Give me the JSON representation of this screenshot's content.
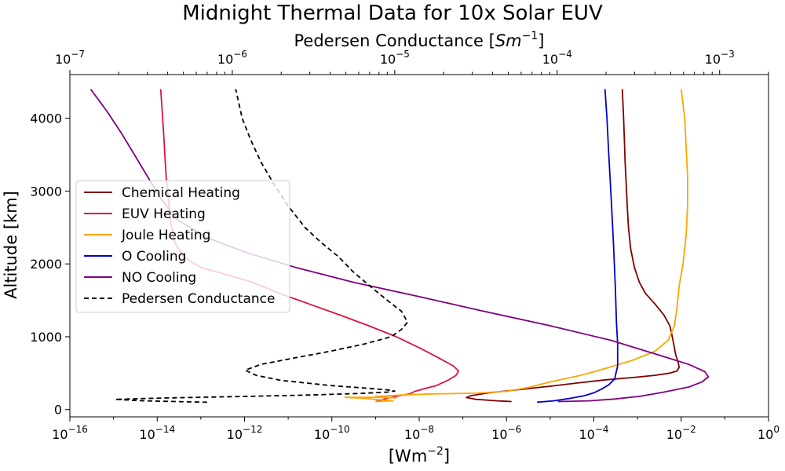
{
  "chart_data": {
    "type": "line",
    "title": "Midnight Thermal Data for 10x Solar EUV",
    "xlabel": "[Wm⁻²]",
    "xlabel_parts": [
      "[Wm",
      "−2",
      "]"
    ],
    "ylabel": "Altitude [km]",
    "top_xlabel": "Pedersen Conductance [Sm⁻¹]",
    "top_xlabel_parts": [
      "Pedersen Conductance [",
      "Sm",
      "−1",
      "]"
    ],
    "x_scale": "log",
    "xlim": [
      1e-16,
      1
    ],
    "x_ticks": [
      {
        "base": "10",
        "exp": "−16"
      },
      {
        "base": "10",
        "exp": "−14"
      },
      {
        "base": "10",
        "exp": "−12"
      },
      {
        "base": "10",
        "exp": "−10"
      },
      {
        "base": "10",
        "exp": "−8"
      },
      {
        "base": "10",
        "exp": "−6"
      },
      {
        "base": "10",
        "exp": "−4"
      },
      {
        "base": "10",
        "exp": "−2"
      },
      {
        "base": "10",
        "exp": "0"
      }
    ],
    "top_x_scale": "log",
    "top_xlim": [
      1e-07,
      0.002
    ],
    "top_x_ticks": [
      {
        "base": "10",
        "exp": "−7"
      },
      {
        "base": "10",
        "exp": "−6"
      },
      {
        "base": "10",
        "exp": "−5"
      },
      {
        "base": "10",
        "exp": "−4"
      },
      {
        "base": "10",
        "exp": "−3"
      }
    ],
    "ylim": [
      -100,
      4600
    ],
    "y_ticks": [
      "0",
      "1000",
      "2000",
      "3000",
      "4000"
    ],
    "legend_position": "center-left",
    "series": [
      {
        "name": "Chemical Heating",
        "color": "#7f0000",
        "dash": "solid",
        "axis": "bottom",
        "points": [
          [
            1.3e-06,
            110
          ],
          [
            6e-07,
            120
          ],
          [
            2e-07,
            140
          ],
          [
            1.2e-07,
            165
          ],
          [
            1.5e-07,
            190
          ],
          [
            4e-07,
            230
          ],
          [
            2e-06,
            275
          ],
          [
            1e-05,
            320
          ],
          [
            5e-05,
            370
          ],
          [
            0.0002,
            410
          ],
          [
            0.0008,
            440
          ],
          [
            0.0025,
            470
          ],
          [
            0.0055,
            500
          ],
          [
            0.008,
            530
          ],
          [
            0.009,
            580
          ],
          [
            0.0085,
            650
          ],
          [
            0.0075,
            750
          ],
          [
            0.007,
            850
          ],
          [
            0.0065,
            950
          ],
          [
            0.006,
            1050
          ],
          [
            0.0055,
            1150
          ],
          [
            0.004,
            1300
          ],
          [
            0.0025,
            1450
          ],
          [
            0.0015,
            1600
          ],
          [
            0.0011,
            1750
          ],
          [
            0.00085,
            1950
          ],
          [
            0.0007,
            2200
          ],
          [
            0.00062,
            2500
          ],
          [
            0.00058,
            2800
          ],
          [
            0.00055,
            3100
          ],
          [
            0.00052,
            3400
          ],
          [
            0.0005,
            3700
          ],
          [
            0.00048,
            4000
          ],
          [
            0.00045,
            4400
          ]
        ]
      },
      {
        "name": "EUV Heating",
        "color": "#dc143c",
        "dash": "solid",
        "axis": "bottom",
        "points": [
          [
            1e-09,
            110
          ],
          [
            1.3e-09,
            130
          ],
          [
            2e-09,
            160
          ],
          [
            3.5e-09,
            190
          ],
          [
            6e-09,
            215
          ],
          [
            8e-09,
            250
          ],
          [
            1.2e-08,
            280
          ],
          [
            2.5e-08,
            330
          ],
          [
            4.5e-08,
            400
          ],
          [
            7e-08,
            470
          ],
          [
            8e-08,
            530
          ],
          [
            6e-08,
            600
          ],
          [
            3e-08,
            700
          ],
          [
            1e-08,
            850
          ],
          [
            3e-09,
            1000
          ],
          [
            7e-10,
            1150
          ],
          [
            1.5e-10,
            1300
          ],
          [
            3e-11,
            1450
          ],
          [
            6e-12,
            1600
          ],
          [
            1.5e-12,
            1750
          ],
          [
            4e-13,
            1850
          ],
          [
            1e-13,
            1950
          ],
          [
            4e-14,
            2100
          ],
          [
            2.5e-14,
            2300
          ],
          [
            2e-14,
            2600
          ],
          [
            1.8e-14,
            2900
          ],
          [
            1.6e-14,
            3200
          ],
          [
            1.5e-14,
            3500
          ],
          [
            1.4e-14,
            3800
          ],
          [
            1.3e-14,
            4100
          ],
          [
            1.2e-14,
            4400
          ]
        ]
      },
      {
        "name": "Joule Heating",
        "color": "#ffa500",
        "dash": "solid",
        "axis": "bottom",
        "points": [
          [
            1e-09,
            110
          ],
          [
            2.5e-09,
            120
          ],
          [
            5e-10,
            155
          ],
          [
            2e-10,
            168
          ],
          [
            1e-09,
            170
          ],
          [
            3e-09,
            160
          ],
          [
            1e-09,
            180
          ],
          [
            4e-09,
            200
          ],
          [
            2e-08,
            215
          ],
          [
            2e-07,
            225
          ],
          [
            1e-06,
            250
          ],
          [
            3e-06,
            300
          ],
          [
            1e-05,
            380
          ],
          [
            5e-05,
            470
          ],
          [
            0.0002,
            570
          ],
          [
            0.0008,
            680
          ],
          [
            0.0025,
            800
          ],
          [
            0.005,
            950
          ],
          [
            0.007,
            1150
          ],
          [
            0.008,
            1400
          ],
          [
            0.009,
            1700
          ],
          [
            0.011,
            2000
          ],
          [
            0.013,
            2400
          ],
          [
            0.014,
            2800
          ],
          [
            0.014,
            3200
          ],
          [
            0.013,
            3600
          ],
          [
            0.012,
            4000
          ],
          [
            0.01,
            4400
          ]
        ]
      },
      {
        "name": "O Cooling",
        "color": "#0000cd",
        "dash": "solid",
        "axis": "bottom",
        "points": [
          [
            5e-06,
            100
          ],
          [
            1.2e-05,
            120
          ],
          [
            3e-05,
            155
          ],
          [
            6e-05,
            190
          ],
          [
            0.0001,
            230
          ],
          [
            0.00015,
            280
          ],
          [
            0.00022,
            340
          ],
          [
            0.0003,
            420
          ],
          [
            0.00035,
            600
          ],
          [
            0.00035,
            900
          ],
          [
            0.00033,
            1200
          ],
          [
            0.00031,
            1700
          ],
          [
            0.00028,
            2300
          ],
          [
            0.00025,
            2900
          ],
          [
            0.00022,
            3500
          ],
          [
            0.0002,
            4000
          ],
          [
            0.00018,
            4400
          ]
        ]
      },
      {
        "name": "NO Cooling",
        "color": "#800080",
        "dash": "solid",
        "axis": "bottom",
        "points": [
          [
            1.5e-05,
            110
          ],
          [
            8e-05,
            120
          ],
          [
            0.0003,
            145
          ],
          [
            0.0012,
            185
          ],
          [
            0.004,
            240
          ],
          [
            0.015,
            310
          ],
          [
            0.03,
            380
          ],
          [
            0.042,
            450
          ],
          [
            0.035,
            520
          ],
          [
            0.015,
            620
          ],
          [
            0.003,
            750
          ],
          [
            0.00025,
            950
          ],
          [
            1e-05,
            1150
          ],
          [
            3e-07,
            1350
          ],
          [
            1e-08,
            1550
          ],
          [
            3e-10,
            1750
          ],
          [
            1.5e-11,
            1950
          ],
          [
            1.2e-12,
            2150
          ],
          [
            1.5e-13,
            2350
          ],
          [
            3e-14,
            2600
          ],
          [
            1.2e-14,
            2900
          ],
          [
            6e-15,
            3200
          ],
          [
            3e-15,
            3500
          ],
          [
            1.5e-15,
            3800
          ],
          [
            7e-16,
            4100
          ],
          [
            3e-16,
            4400
          ]
        ]
      },
      {
        "name": "Pedersen Conductance",
        "color": "#000000",
        "dash": "dashed",
        "axis": "top",
        "points": [
          [
            7e-07,
            100
          ],
          [
            2.8e-07,
            120
          ],
          [
            1.9e-07,
            140
          ],
          [
            4e-07,
            160
          ],
          [
            1.2e-06,
            180
          ],
          [
            3e-06,
            200
          ],
          [
            6e-06,
            220
          ],
          [
            9e-06,
            240
          ],
          [
            1e-05,
            255
          ],
          [
            9e-06,
            270
          ],
          [
            7e-06,
            290
          ],
          [
            4e-06,
            330
          ],
          [
            2e-06,
            400
          ],
          [
            1.4e-06,
            470
          ],
          [
            1.2e-06,
            540
          ],
          [
            1.5e-06,
            620
          ],
          [
            2.3e-06,
            700
          ],
          [
            4e-06,
            800
          ],
          [
            6.5e-06,
            900
          ],
          [
            9.5e-06,
            1000
          ],
          [
            1.1e-05,
            1100
          ],
          [
            1.2e-05,
            1200
          ],
          [
            1.1e-05,
            1350
          ],
          [
            9e-06,
            1500
          ],
          [
            7e-06,
            1700
          ],
          [
            5.5e-06,
            1900
          ],
          [
            4.5e-06,
            2100
          ],
          [
            3.5e-06,
            2300
          ],
          [
            2.8e-06,
            2500
          ],
          [
            2.2e-06,
            2800
          ],
          [
            1.8e-06,
            3100
          ],
          [
            1.5e-06,
            3400
          ],
          [
            1.3e-06,
            3700
          ],
          [
            1.15e-06,
            4000
          ],
          [
            1.05e-06,
            4400
          ]
        ]
      }
    ]
  }
}
